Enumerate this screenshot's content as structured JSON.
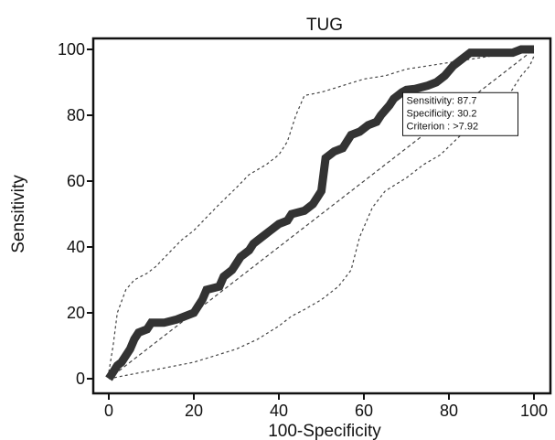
{
  "chart_data": {
    "type": "line",
    "title": "TUG",
    "xlabel": "100-Specificity",
    "ylabel": "Sensitivity",
    "xlim": [
      0,
      100
    ],
    "ylim": [
      0,
      100
    ],
    "x_ticks": [
      "0",
      "20",
      "40",
      "60",
      "80",
      "100"
    ],
    "y_ticks": [
      "0",
      "20",
      "40",
      "60",
      "80",
      "100"
    ],
    "grid": false,
    "series": [
      {
        "role": "roc_curve",
        "style": "thick-stepped",
        "color": "#333333",
        "points": [
          [
            0,
            0
          ],
          [
            1,
            2
          ],
          [
            2,
            4
          ],
          [
            3,
            5
          ],
          [
            4,
            7
          ],
          [
            5,
            9
          ],
          [
            6,
            12
          ],
          [
            7,
            14
          ],
          [
            9,
            15
          ],
          [
            10,
            17
          ],
          [
            13,
            17
          ],
          [
            16,
            18
          ],
          [
            18,
            19
          ],
          [
            20,
            20
          ],
          [
            21,
            22
          ],
          [
            22,
            24
          ],
          [
            23,
            27
          ],
          [
            26,
            28
          ],
          [
            27,
            31
          ],
          [
            29,
            33
          ],
          [
            30,
            35
          ],
          [
            31,
            37
          ],
          [
            33,
            39
          ],
          [
            34,
            41
          ],
          [
            36,
            43
          ],
          [
            38,
            45
          ],
          [
            40,
            47
          ],
          [
            42,
            48
          ],
          [
            43,
            50
          ],
          [
            46,
            51
          ],
          [
            48,
            53
          ],
          [
            49,
            55
          ],
          [
            50,
            57
          ],
          [
            51,
            67
          ],
          [
            53,
            69
          ],
          [
            55,
            70
          ],
          [
            57,
            74
          ],
          [
            59,
            75
          ],
          [
            61,
            77
          ],
          [
            63,
            78
          ],
          [
            64,
            80
          ],
          [
            66,
            83
          ],
          [
            67,
            85
          ],
          [
            69,
            87
          ],
          [
            70,
            87.7
          ],
          [
            72,
            88
          ],
          [
            75,
            89
          ],
          [
            77,
            90
          ],
          [
            79,
            92
          ],
          [
            81,
            95
          ],
          [
            83,
            97
          ],
          [
            85,
            99
          ],
          [
            88,
            99
          ],
          [
            90,
            99
          ],
          [
            95,
            99
          ],
          [
            97,
            100
          ],
          [
            100,
            100
          ]
        ]
      },
      {
        "role": "upper_confidence_bound",
        "style": "dotted",
        "color": "#444444",
        "points": [
          [
            0,
            2
          ],
          [
            1,
            10
          ],
          [
            2,
            20
          ],
          [
            4,
            27
          ],
          [
            6,
            30
          ],
          [
            9,
            32
          ],
          [
            11,
            34
          ],
          [
            14,
            38
          ],
          [
            17,
            42
          ],
          [
            20,
            45
          ],
          [
            23,
            49
          ],
          [
            26,
            53
          ],
          [
            30,
            58
          ],
          [
            33,
            62
          ],
          [
            37,
            65
          ],
          [
            40,
            68
          ],
          [
            42,
            72
          ],
          [
            44,
            80
          ],
          [
            46,
            86
          ],
          [
            50,
            87
          ],
          [
            55,
            89
          ],
          [
            60,
            91
          ],
          [
            65,
            92
          ],
          [
            70,
            94
          ],
          [
            75,
            95
          ],
          [
            80,
            96
          ],
          [
            85,
            97
          ],
          [
            90,
            98
          ],
          [
            95,
            99
          ],
          [
            100,
            100
          ]
        ]
      },
      {
        "role": "lower_confidence_bound",
        "style": "dotted",
        "color": "#444444",
        "points": [
          [
            0,
            0
          ],
          [
            4,
            1
          ],
          [
            8,
            2
          ],
          [
            12,
            3
          ],
          [
            16,
            4
          ],
          [
            20,
            5
          ],
          [
            25,
            7
          ],
          [
            30,
            9
          ],
          [
            35,
            12
          ],
          [
            40,
            16
          ],
          [
            43,
            19
          ],
          [
            46,
            21
          ],
          [
            50,
            24
          ],
          [
            54,
            28
          ],
          [
            57,
            33
          ],
          [
            59,
            43
          ],
          [
            62,
            52
          ],
          [
            65,
            57
          ],
          [
            70,
            61
          ],
          [
            74,
            65
          ],
          [
            78,
            68
          ],
          [
            82,
            73
          ],
          [
            86,
            78
          ],
          [
            90,
            82
          ],
          [
            94,
            86
          ],
          [
            97,
            92
          ],
          [
            99,
            95
          ],
          [
            100,
            98
          ]
        ]
      },
      {
        "role": "reference_diagonal",
        "style": "dashed",
        "color": "#444444",
        "points": [
          [
            0,
            0
          ],
          [
            100,
            100
          ]
        ]
      }
    ],
    "annotation": {
      "lines": [
        "Sensitivity: 87.7",
        "Specificity: 30.2",
        "Criterion : >7.92"
      ],
      "points_to": [
        70,
        87.7
      ]
    }
  }
}
